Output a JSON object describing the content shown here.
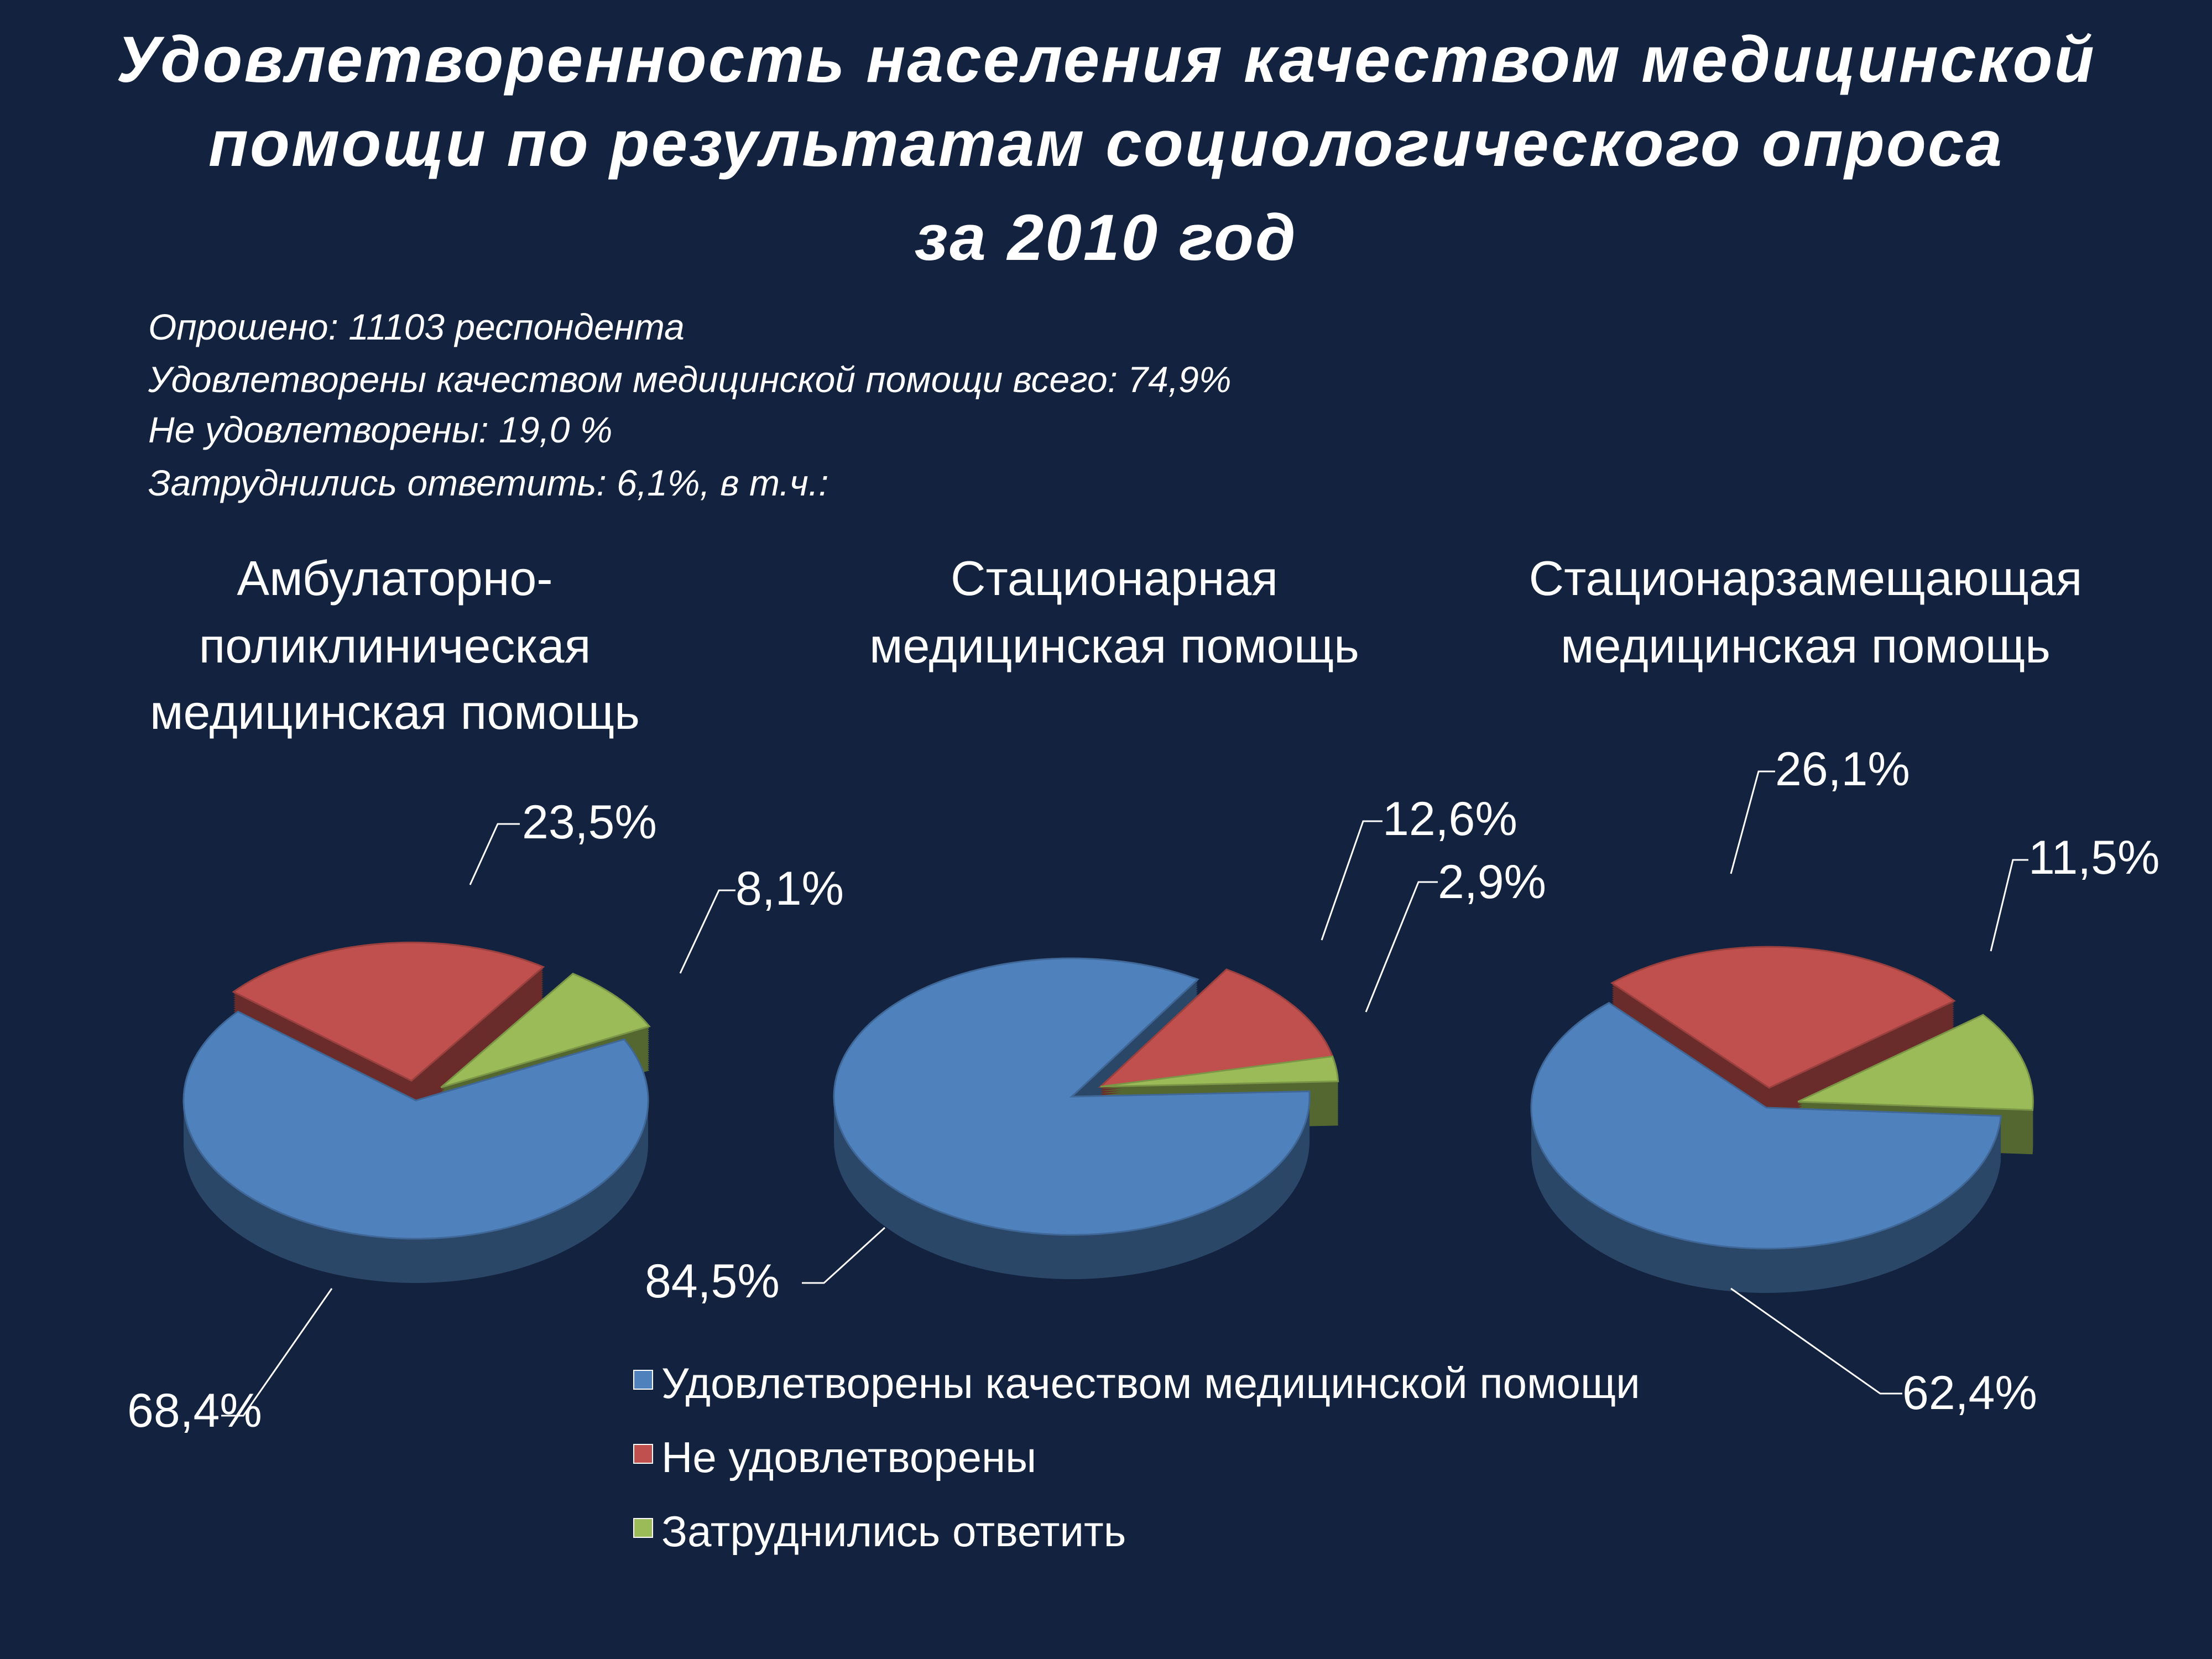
{
  "title_lines": [
    "Удовлетворенность населения качеством медицинской",
    "помощи по результатам социологического опроса",
    "за 2010 год"
  ],
  "stats": [
    "Опрошено: 11103 респондента",
    "Удовлетворены качеством медицинской помощи всего: 74,9%",
    "Не удовлетворены: 19,0 %",
    "Затруднились ответить: 6,1%, в т.ч.:"
  ],
  "colors": {
    "background": "#13223e",
    "satisfied": "#4f81bd",
    "unsatisfied": "#c0504d",
    "undecided": "#9bbb59"
  },
  "chart_data": [
    {
      "type": "pie",
      "title_lines": [
        "Амбулаторно-",
        "поликлиническая",
        "медицинская помощь"
      ],
      "categories": [
        "Удовлетворены качеством медицинской помощи",
        "Не удовлетворены",
        "Затруднились ответить"
      ],
      "values": [
        68.4,
        23.5,
        8.1
      ],
      "labels": [
        "68,4%",
        "23,5%",
        "8,1%"
      ],
      "exploded": [
        "Не удовлетворены",
        "Затруднились ответить"
      ]
    },
    {
      "type": "pie",
      "title_lines": [
        "Стационарная",
        "медицинская помощь"
      ],
      "categories": [
        "Удовлетворены качеством медицинской помощи",
        "Не удовлетворены",
        "Затруднились ответить"
      ],
      "values": [
        84.5,
        12.6,
        2.9
      ],
      "labels": [
        "84,5%",
        "12,6%",
        "2,9%"
      ],
      "exploded": [
        "Удовлетворены качеством медицинской помощи"
      ]
    },
    {
      "type": "pie",
      "title_lines": [
        "Стационарзамещающая",
        "медицинская помощь"
      ],
      "categories": [
        "Удовлетворены качеством медицинской помощи",
        "Не удовлетворены",
        "Затруднились ответить"
      ],
      "values": [
        62.4,
        26.1,
        11.5
      ],
      "labels": [
        "62,4%",
        "26,1%",
        "11,5%"
      ],
      "exploded": [
        "Не удовлетворены",
        "Затруднились ответить"
      ]
    }
  ],
  "legend": {
    "position": "bottom-center",
    "items": [
      {
        "label": "Удовлетворены качеством медицинской помощи",
        "color": "#4f81bd"
      },
      {
        "label": "Не удовлетворены",
        "color": "#c0504d"
      },
      {
        "label": "Затруднились ответить",
        "color": "#9bbb59"
      }
    ]
  }
}
